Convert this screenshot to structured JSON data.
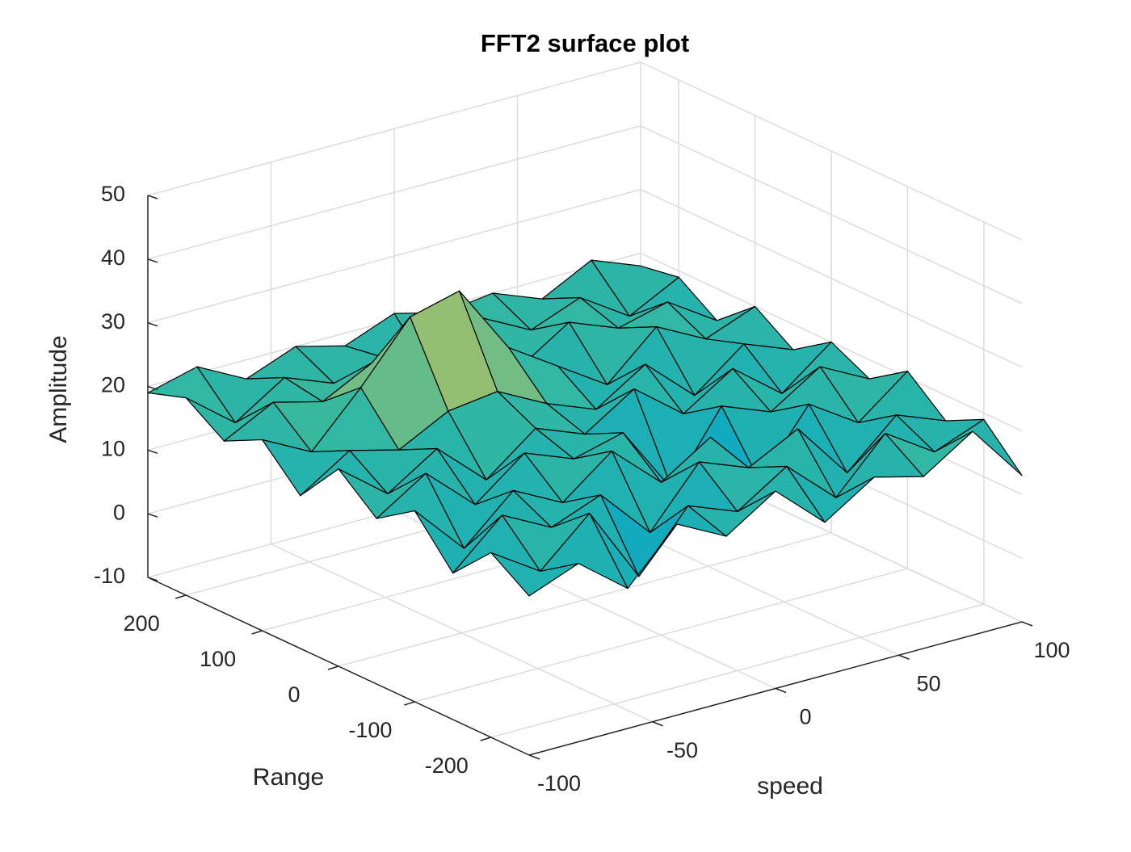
{
  "chart_data": {
    "type": "surface",
    "title": "FFT2 surface plot",
    "x_label": "speed",
    "y_label": "Range",
    "z_label": "Amplitude",
    "x": [
      -100,
      -80,
      -60,
      -40,
      -20,
      0,
      20,
      40,
      60,
      80,
      100
    ],
    "y": [
      -250,
      -200,
      -150,
      -100,
      -50,
      0,
      50,
      100,
      150,
      200,
      250
    ],
    "z": [
      [
        15,
        18,
        12,
        20,
        16,
        21,
        14,
        19,
        17,
        22,
        13
      ],
      [
        19,
        14,
        21,
        9,
        18,
        15,
        20,
        13,
        21,
        16,
        19
      ],
      [
        13,
        20,
        16,
        19,
        11,
        20,
        17,
        21,
        12,
        19,
        16
      ],
      [
        20,
        12,
        19,
        15,
        21,
        14,
        19,
        10,
        20,
        15,
        21
      ],
      [
        16,
        21,
        14,
        20,
        17,
        19,
        8,
        19,
        16,
        21,
        17
      ],
      [
        21,
        15,
        20,
        13,
        19,
        16,
        21,
        15,
        20,
        14,
        20
      ],
      [
        14,
        19,
        17,
        21,
        22,
        18,
        15,
        20,
        13,
        19,
        16
      ],
      [
        20,
        16,
        24,
        33,
        35,
        24,
        19,
        14,
        21,
        17,
        20
      ],
      [
        17,
        21,
        19,
        23,
        24,
        20,
        16,
        21,
        18,
        20,
        15
      ],
      [
        21,
        15,
        20,
        17,
        19,
        14,
        21,
        17,
        20,
        15,
        19
      ],
      [
        19,
        21,
        17,
        20,
        18,
        21,
        19,
        20,
        17,
        21,
        18
      ]
    ],
    "xlim": [
      -100,
      100
    ],
    "ylim": [
      -250,
      250
    ],
    "zlim": [
      -10,
      50
    ],
    "xticks": [
      -100,
      -50,
      0,
      50,
      100
    ],
    "yticks": [
      -200,
      -100,
      0,
      100,
      200
    ],
    "zticks": [
      -10,
      0,
      10,
      20,
      30,
      40,
      50
    ],
    "grid": true,
    "colormap": [
      "#352a87",
      "#0363e1",
      "#1485d4",
      "#06a7c6",
      "#38b99e",
      "#92bf73",
      "#d9ba56",
      "#fcce2e",
      "#f9fb0e"
    ],
    "edge_color": "#000000"
  }
}
